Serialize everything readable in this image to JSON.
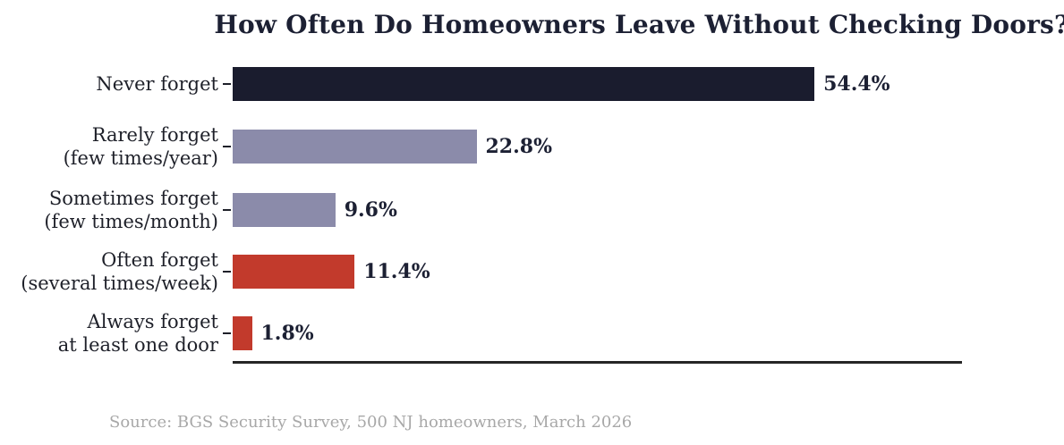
{
  "chart_data": {
    "type": "bar",
    "orientation": "horizontal",
    "title": "How Often Do Homeowners Leave Without Checking Doors?",
    "categories": [
      "Never forget",
      "Rarely forget\n(few times/year)",
      "Sometimes forget\n(few times/month)",
      "Often forget\n(several times/week)",
      "Always forget\nat least one door"
    ],
    "values": [
      54.4,
      22.8,
      9.6,
      11.4,
      1.8
    ],
    "value_labels": [
      "54.4%",
      "22.8%",
      "9.6%",
      "11.4%",
      "1.8%"
    ],
    "bar_colors": [
      "#1a1c2e",
      "#8b8baa",
      "#8b8baa",
      "#c23a2c",
      "#c23a2c"
    ],
    "xlabel": "",
    "ylabel": "",
    "xlim": [
      0,
      68.2
    ],
    "grid": false,
    "legend": null,
    "value_labels_shown": true,
    "source": "Source: BGS Security Survey, 500 NJ homeowners, March 2026",
    "colors": {
      "title_text": "#1c2033",
      "category_text": "#1e2029",
      "value_text": "#1c2033",
      "axis_line": "#262626",
      "source_text": "#a8a8a8",
      "background": "#ffffff"
    }
  }
}
